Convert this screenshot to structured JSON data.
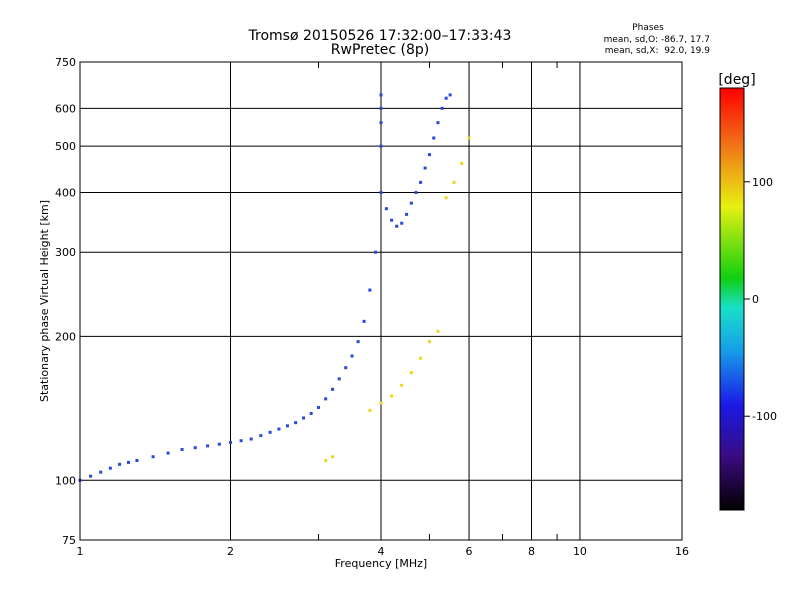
{
  "chart_data": {
    "type": "scatter",
    "title": "Tromsø 20150526 17:32:00–17:33:43",
    "subtitle": "RwPretec (8p)",
    "phase_header": "Phases",
    "phase_line_o": "mean, sd,O: -86.7, 17.7",
    "phase_line_x": "mean, sd,X:  92.0, 19.9",
    "xlabel": "Frequency [MHz]",
    "ylabel": "Stationary phase Virtual Height [km]",
    "x_scale": "log",
    "y_scale": "log",
    "xlim": [
      1,
      16
    ],
    "ylim": [
      75,
      750
    ],
    "x_ticks": [
      1,
      2,
      4,
      6,
      8,
      10,
      16
    ],
    "x_minor_ticks": [
      3,
      5,
      7,
      9
    ],
    "y_ticks": [
      75,
      100,
      200,
      300,
      400,
      500,
      600,
      750
    ],
    "grid": true,
    "colorbar": {
      "label": "[deg]",
      "range": [
        -180,
        180
      ],
      "ticks": [
        100,
        0,
        -100
      ],
      "colormap": [
        "#000000",
        "#3a0a7a",
        "#1a1ae8",
        "#16a0e8",
        "#18e0c8",
        "#10d010",
        "#e8f010",
        "#f07818",
        "#ff0000"
      ]
    },
    "series": [
      {
        "phase_mean": -86.7,
        "phase_sd": 17.7,
        "color": "#2848d8",
        "x": [
          1.0,
          1.05,
          1.1,
          1.15,
          1.2,
          1.25,
          1.3,
          1.4,
          1.5,
          1.6,
          1.7,
          1.8,
          1.9,
          2.0,
          2.1,
          2.2,
          2.3,
          2.4,
          2.5,
          2.6,
          2.7,
          2.8,
          2.9,
          3.0,
          3.1,
          3.2,
          3.3,
          3.4,
          3.5,
          3.6,
          3.7,
          3.8,
          3.9,
          4.0,
          4.0,
          4.0,
          4.0,
          4.0,
          4.1,
          4.2,
          4.3,
          4.4,
          4.5,
          4.6,
          4.7,
          4.8,
          4.9,
          5.0,
          5.1,
          5.2,
          5.3,
          5.4,
          5.5
        ],
        "y": [
          100,
          102,
          104,
          106,
          108,
          109,
          110,
          112,
          114,
          116,
          117,
          118,
          119,
          120,
          121,
          122,
          124,
          126,
          128,
          130,
          132,
          135,
          138,
          142,
          148,
          155,
          163,
          172,
          182,
          195,
          215,
          250,
          300,
          400,
          500,
          560,
          600,
          640,
          370,
          350,
          340,
          345,
          360,
          380,
          400,
          420,
          450,
          480,
          520,
          560,
          600,
          630,
          640
        ]
      },
      {
        "phase_mean": 92.0,
        "phase_sd": 19.9,
        "color": "#e8d820",
        "x": [
          3.1,
          3.2,
          3.8,
          4.0,
          4.2,
          4.4,
          4.6,
          4.8,
          5.0,
          5.2,
          5.4,
          5.6,
          5.8,
          6.0
        ],
        "y": [
          110,
          112,
          140,
          145,
          150,
          158,
          168,
          180,
          195,
          205,
          390,
          420,
          460,
          520
        ]
      }
    ]
  }
}
